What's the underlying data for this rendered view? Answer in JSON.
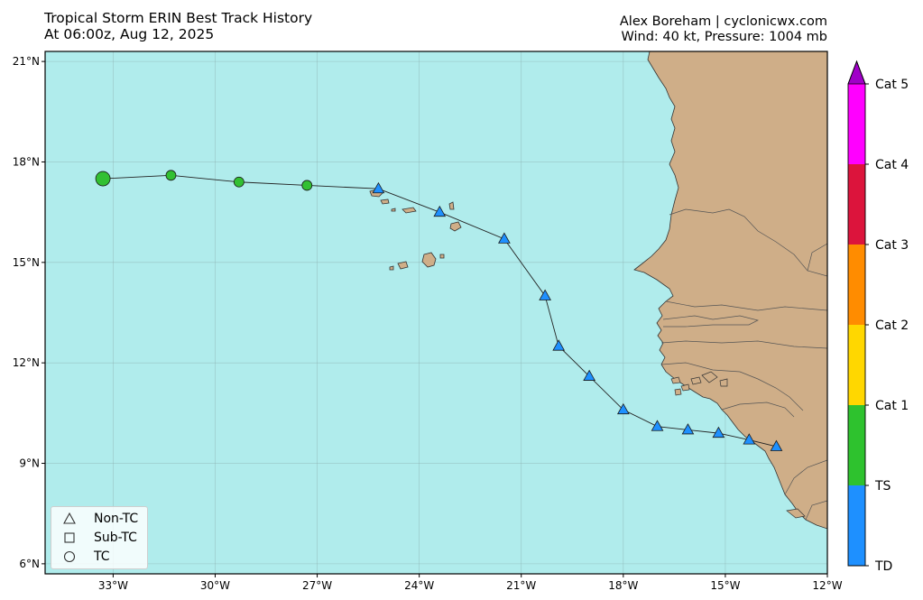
{
  "header": {
    "title_line1": "Tropical Storm ERIN Best Track History",
    "title_line2": "At 06:00z, Aug 12, 2025",
    "credit": "Alex Boreham | cyclonicwx.com",
    "stats": "Wind: 40 kt, Pressure: 1004 mb"
  },
  "axes": {
    "lat_ticks": [
      "6°N",
      "9°N",
      "12°N",
      "15°N",
      "18°N",
      "21°N"
    ],
    "lon_ticks": [
      "33°W",
      "30°W",
      "27°W",
      "24°W",
      "21°W",
      "18°W",
      "15°W",
      "12°W"
    ]
  },
  "legend": {
    "items": [
      {
        "label": "Non-TC",
        "symbol": "triangle"
      },
      {
        "label": "Sub-TC",
        "symbol": "square"
      },
      {
        "label": "TC",
        "symbol": "circle"
      }
    ]
  },
  "colorbar": {
    "labels": [
      "TD",
      "TS",
      "Cat 1",
      "Cat 2",
      "Cat 3",
      "Cat 4",
      "Cat 5"
    ],
    "colors": [
      "#1e90ff",
      "#2ec22e",
      "#ffd700",
      "#ff8c00",
      "#dc143c",
      "#ff00ff",
      "#a000c8"
    ]
  },
  "colors": {
    "ocean": "#b0ecec",
    "land": "#cfae88",
    "TD": "#1e90ff",
    "TS": "#32c032"
  },
  "chart_data": {
    "type": "scatter",
    "xlim": [
      -35,
      -12
    ],
    "ylim": [
      5.7,
      21.3
    ],
    "track": [
      {
        "lon": -13.5,
        "lat": 9.5,
        "status": "Non-TC",
        "cat": "TD"
      },
      {
        "lon": -14.3,
        "lat": 9.7,
        "status": "Non-TC",
        "cat": "TD"
      },
      {
        "lon": -15.2,
        "lat": 9.9,
        "status": "Non-TC",
        "cat": "TD"
      },
      {
        "lon": -16.1,
        "lat": 10.0,
        "status": "Non-TC",
        "cat": "TD"
      },
      {
        "lon": -17.0,
        "lat": 10.1,
        "status": "Non-TC",
        "cat": "TD"
      },
      {
        "lon": -18.0,
        "lat": 10.6,
        "status": "Non-TC",
        "cat": "TD"
      },
      {
        "lon": -19.0,
        "lat": 11.6,
        "status": "Non-TC",
        "cat": "TD"
      },
      {
        "lon": -19.9,
        "lat": 12.5,
        "status": "Non-TC",
        "cat": "TD"
      },
      {
        "lon": -20.3,
        "lat": 14.0,
        "status": "Non-TC",
        "cat": "TD"
      },
      {
        "lon": -21.5,
        "lat": 15.7,
        "status": "Non-TC",
        "cat": "TD"
      },
      {
        "lon": -23.4,
        "lat": 16.5,
        "status": "Non-TC",
        "cat": "TD"
      },
      {
        "lon": -25.2,
        "lat": 17.2,
        "status": "Non-TC",
        "cat": "TD"
      },
      {
        "lon": -27.3,
        "lat": 17.3,
        "status": "TC",
        "cat": "TS"
      },
      {
        "lon": -29.3,
        "lat": 17.4,
        "status": "TC",
        "cat": "TS"
      },
      {
        "lon": -31.3,
        "lat": 17.6,
        "status": "TC",
        "cat": "TS"
      },
      {
        "lon": -33.3,
        "lat": 17.5,
        "status": "TC",
        "cat": "TS"
      }
    ]
  }
}
